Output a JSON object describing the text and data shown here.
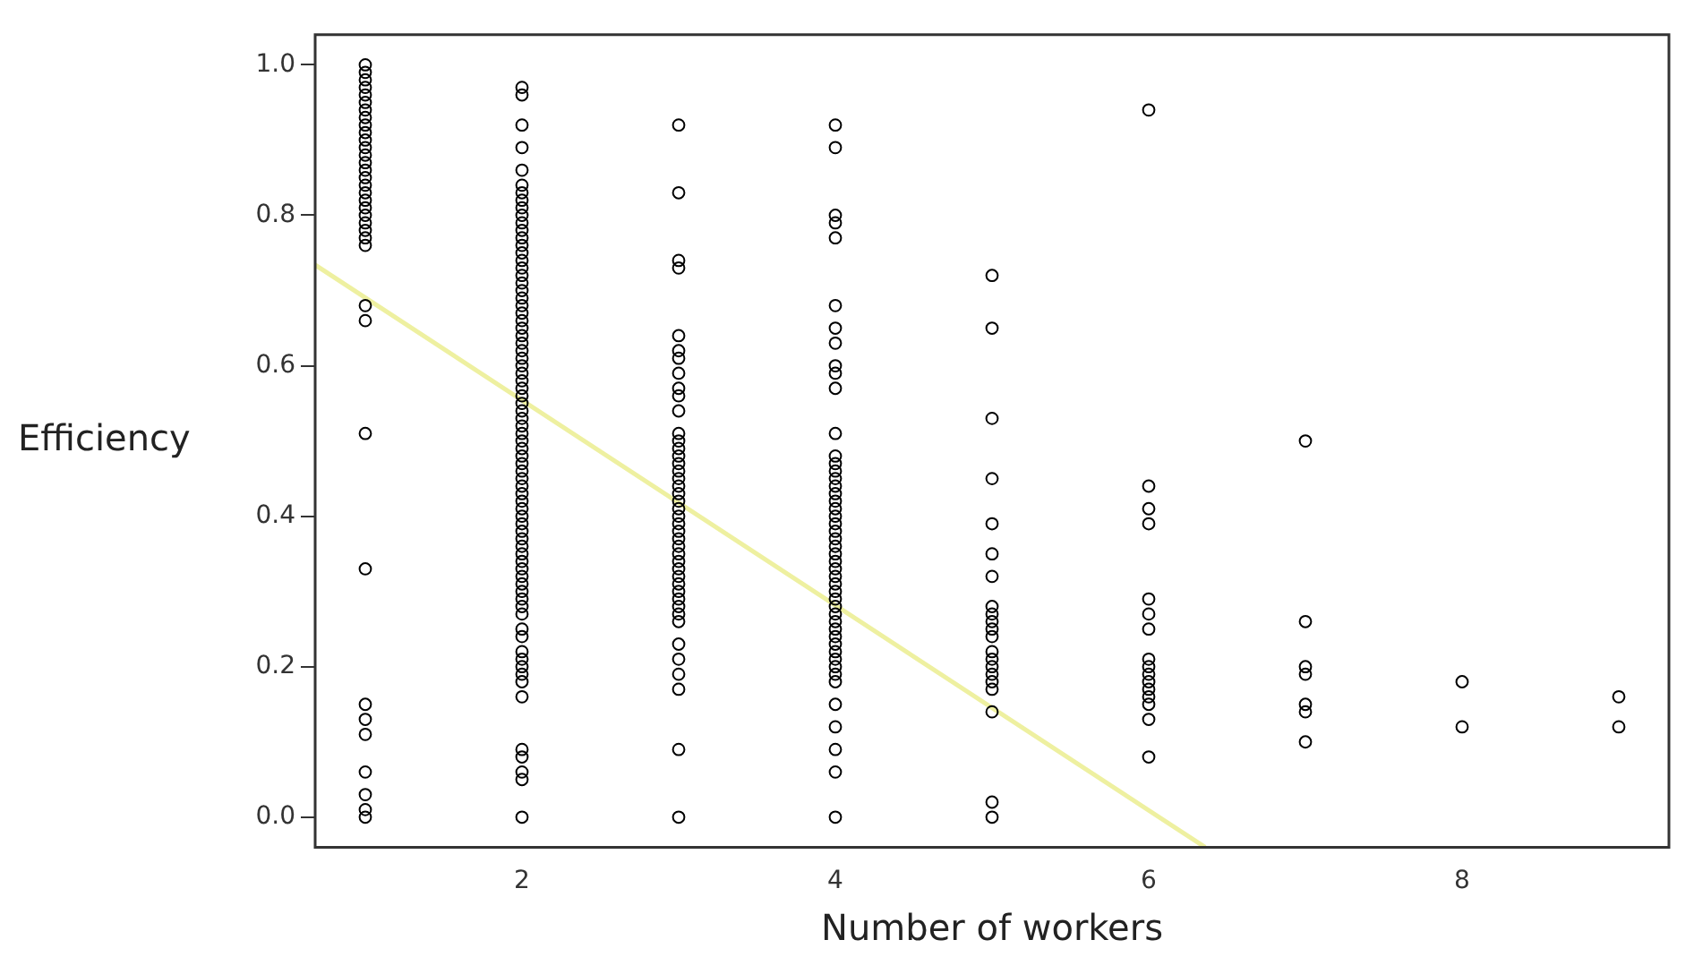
{
  "chart_data": {
    "type": "scatter",
    "xlabel": "Number of workers",
    "ylabel": "Efficiency",
    "xlim": [
      0.68,
      9.32
    ],
    "ylim": [
      -0.04,
      1.04
    ],
    "xticks": [
      2,
      4,
      6,
      8
    ],
    "yticks": [
      {
        "value": 0,
        "label": "0.0"
      },
      0.2,
      0.4,
      0.6,
      0.8,
      {
        "value": 1,
        "label": "1.0"
      }
    ],
    "grid": false,
    "legend": false,
    "marker": "circle",
    "series": [
      {
        "color": "#000000",
        "x": [
          1,
          1,
          1,
          1,
          1,
          1,
          1,
          1,
          1,
          1,
          1,
          1,
          1,
          1,
          1,
          1,
          1,
          1,
          1,
          1,
          1,
          1,
          1,
          1,
          1,
          1,
          1,
          1,
          1,
          1,
          1,
          1,
          1,
          1,
          1,
          1
        ],
        "values": [
          1.0,
          0.99,
          0.98,
          0.97,
          0.96,
          0.95,
          0.94,
          0.93,
          0.92,
          0.91,
          0.9,
          0.89,
          0.88,
          0.87,
          0.86,
          0.85,
          0.84,
          0.83,
          0.82,
          0.81,
          0.8,
          0.79,
          0.78,
          0.77,
          0.76,
          0.68,
          0.66,
          0.51,
          0.33,
          0.15,
          0.13,
          0.11,
          0.06,
          0.03,
          0.01,
          0.0
        ]
      },
      {
        "color": "#000000",
        "x": [
          2,
          2,
          2,
          2,
          2,
          2,
          2,
          2,
          2,
          2,
          2,
          2,
          2,
          2,
          2,
          2,
          2,
          2,
          2,
          2,
          2,
          2,
          2,
          2,
          2,
          2,
          2,
          2,
          2,
          2,
          2,
          2,
          2,
          2,
          2,
          2,
          2,
          2,
          2,
          2,
          2,
          2,
          2,
          2,
          2,
          2,
          2,
          2,
          2,
          2,
          2,
          2,
          2,
          2,
          2,
          2,
          2,
          2,
          2,
          2,
          2,
          2,
          2,
          2,
          2,
          2,
          2,
          2,
          2,
          2,
          2,
          2,
          2,
          2,
          2,
          2
        ],
        "values": [
          0.97,
          0.96,
          0.92,
          0.89,
          0.86,
          0.84,
          0.83,
          0.82,
          0.81,
          0.8,
          0.79,
          0.78,
          0.77,
          0.76,
          0.75,
          0.74,
          0.73,
          0.72,
          0.71,
          0.7,
          0.69,
          0.68,
          0.67,
          0.66,
          0.65,
          0.64,
          0.63,
          0.62,
          0.61,
          0.6,
          0.59,
          0.58,
          0.57,
          0.56,
          0.55,
          0.54,
          0.53,
          0.52,
          0.51,
          0.5,
          0.49,
          0.48,
          0.47,
          0.46,
          0.45,
          0.44,
          0.43,
          0.42,
          0.41,
          0.4,
          0.39,
          0.38,
          0.37,
          0.36,
          0.35,
          0.34,
          0.33,
          0.32,
          0.31,
          0.3,
          0.29,
          0.28,
          0.27,
          0.25,
          0.24,
          0.22,
          0.21,
          0.2,
          0.19,
          0.18,
          0.16,
          0.09,
          0.08,
          0.06,
          0.05,
          0.0
        ]
      },
      {
        "color": "#000000",
        "x": [
          3,
          3,
          3,
          3,
          3,
          3,
          3,
          3,
          3,
          3,
          3,
          3,
          3,
          3,
          3,
          3,
          3,
          3,
          3,
          3,
          3,
          3,
          3,
          3,
          3,
          3,
          3,
          3,
          3,
          3,
          3,
          3,
          3,
          3,
          3,
          3,
          3,
          3,
          3,
          3,
          3,
          3,
          3
        ],
        "values": [
          0.92,
          0.83,
          0.74,
          0.73,
          0.64,
          0.62,
          0.61,
          0.59,
          0.57,
          0.56,
          0.54,
          0.51,
          0.5,
          0.49,
          0.48,
          0.47,
          0.46,
          0.45,
          0.44,
          0.43,
          0.42,
          0.41,
          0.4,
          0.39,
          0.38,
          0.37,
          0.36,
          0.35,
          0.34,
          0.33,
          0.32,
          0.31,
          0.3,
          0.29,
          0.28,
          0.27,
          0.26,
          0.23,
          0.21,
          0.19,
          0.17,
          0.09,
          0.0
        ]
      },
      {
        "color": "#000000",
        "x": [
          4,
          4,
          4,
          4,
          4,
          4,
          4,
          4,
          4,
          4,
          4,
          4,
          4,
          4,
          4,
          4,
          4,
          4,
          4,
          4,
          4,
          4,
          4,
          4,
          4,
          4,
          4,
          4,
          4,
          4,
          4,
          4,
          4,
          4,
          4,
          4,
          4,
          4,
          4,
          4,
          4,
          4,
          4,
          4,
          4,
          4,
          4,
          4
        ],
        "values": [
          0.92,
          0.89,
          0.8,
          0.79,
          0.77,
          0.68,
          0.65,
          0.63,
          0.6,
          0.59,
          0.57,
          0.51,
          0.48,
          0.47,
          0.46,
          0.45,
          0.44,
          0.43,
          0.42,
          0.41,
          0.4,
          0.39,
          0.38,
          0.37,
          0.36,
          0.35,
          0.34,
          0.33,
          0.32,
          0.31,
          0.3,
          0.29,
          0.28,
          0.27,
          0.26,
          0.25,
          0.24,
          0.23,
          0.22,
          0.21,
          0.2,
          0.19,
          0.18,
          0.15,
          0.12,
          0.09,
          0.06,
          0.0
        ]
      },
      {
        "color": "#000000",
        "x": [
          5,
          5,
          5,
          5,
          5,
          5,
          5,
          5,
          5,
          5,
          5,
          5,
          5,
          5,
          5,
          5,
          5,
          5,
          5,
          5,
          5
        ],
        "values": [
          0.72,
          0.65,
          0.53,
          0.45,
          0.39,
          0.35,
          0.32,
          0.28,
          0.27,
          0.26,
          0.25,
          0.24,
          0.22,
          0.21,
          0.2,
          0.19,
          0.18,
          0.17,
          0.14,
          0.02,
          0.0
        ]
      },
      {
        "color": "#000000",
        "x": [
          6,
          6,
          6,
          6,
          6,
          6,
          6,
          6,
          6,
          6,
          6,
          6,
          6,
          6,
          6,
          6
        ],
        "values": [
          0.94,
          0.44,
          0.41,
          0.39,
          0.29,
          0.27,
          0.25,
          0.21,
          0.2,
          0.19,
          0.18,
          0.17,
          0.16,
          0.15,
          0.13,
          0.08
        ]
      },
      {
        "color": "#000000",
        "x": [
          7,
          7,
          7,
          7,
          7,
          7,
          7
        ],
        "values": [
          0.5,
          0.26,
          0.2,
          0.19,
          0.15,
          0.14,
          0.1
        ]
      },
      {
        "color": "#000000",
        "x": [
          8,
          8
        ],
        "values": [
          0.18,
          0.12
        ]
      },
      {
        "color": "#000000",
        "x": [
          9,
          9
        ],
        "values": [
          0.16,
          0.12
        ]
      },
      {
        "type": "line",
        "marker": "none",
        "color": "#eef0a0",
        "x": [
          0.68,
          6.36
        ],
        "values": [
          0.734,
          -0.04
        ]
      }
    ]
  }
}
